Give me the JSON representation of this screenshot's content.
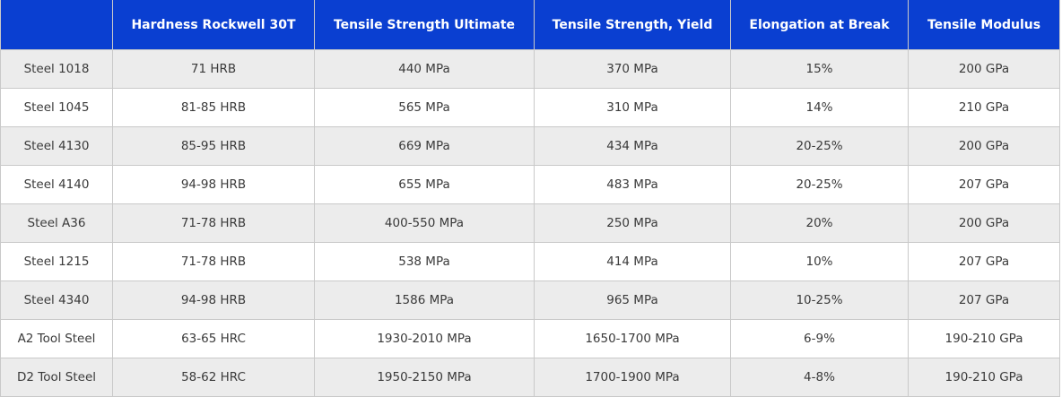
{
  "headers": [
    "",
    "Hardness Rockwell 30T",
    "Tensile Strength Ultimate",
    "Tensile Strength, Yield",
    "Elongation at Break",
    "Tensile Modulus"
  ],
  "rows": [
    [
      "Steel 1018",
      "71 HRB",
      "440 MPa",
      "370 MPa",
      "15%",
      "200 GPa"
    ],
    [
      "Steel 1045",
      "81-85 HRB",
      "565 MPa",
      "310 MPa",
      "14%",
      "210 GPa"
    ],
    [
      "Steel 4130",
      "85-95 HRB",
      "669 MPa",
      "434 MPa",
      "20-25%",
      "200 GPa"
    ],
    [
      "Steel 4140",
      "94-98 HRB",
      "655 MPa",
      "483 MPa",
      "20-25%",
      "207 GPa"
    ],
    [
      "Steel A36",
      "71-78 HRB",
      "400-550 MPa",
      "250 MPa",
      "20%",
      "200 GPa"
    ],
    [
      "Steel 1215",
      "71-78 HRB",
      "538 MPa",
      "414 MPa",
      "10%",
      "207 GPa"
    ],
    [
      "Steel 4340",
      "94-98 HRB",
      "1586 MPa",
      "965 MPa",
      "10-25%",
      "207 GPa"
    ],
    [
      "A2 Tool Steel",
      "63-65 HRC",
      "1930-2010 MPa",
      "1650-1700 MPa",
      "6-9%",
      "190-210 GPa"
    ],
    [
      "D2 Tool Steel",
      "58-62 HRC",
      "1950-2150 MPa",
      "1700-1900 MPa",
      "4-8%",
      "190-210 GPa"
    ]
  ],
  "colors": {
    "header_bg": "#0a3fd1",
    "header_text": "#ffffff",
    "row_alt_bg": "#ececec",
    "row_bg": "#ffffff",
    "border": "#c9c9c9",
    "cell_text": "#3a3a3a"
  }
}
